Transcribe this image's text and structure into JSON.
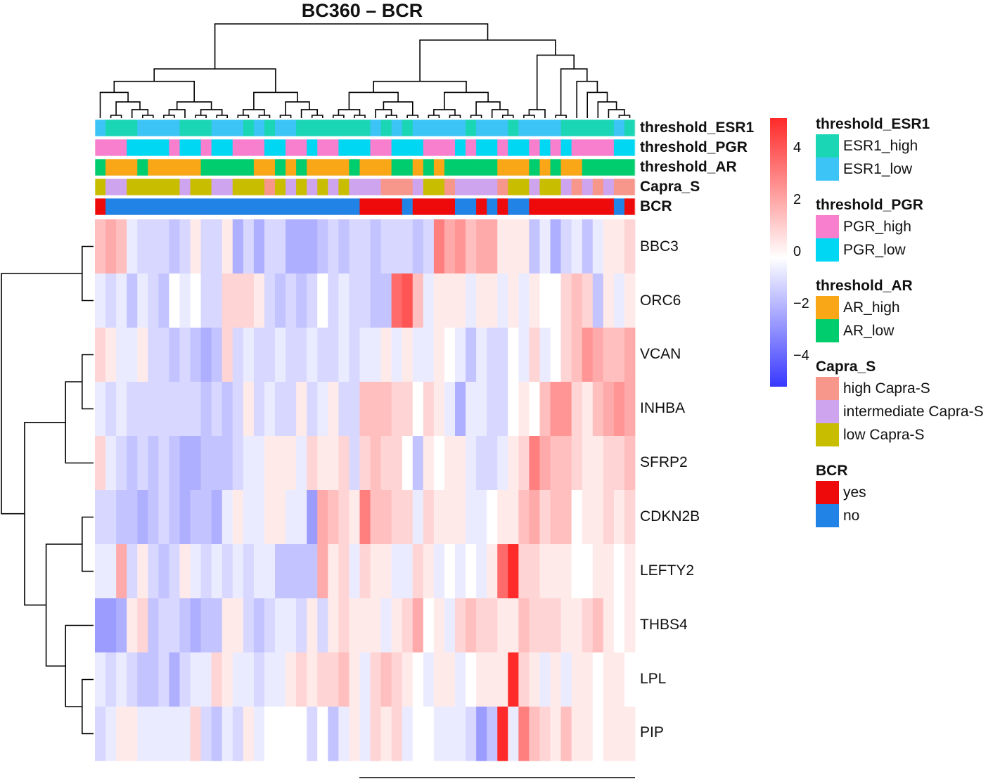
{
  "chart_data": {
    "type": "heatmap",
    "title": "BC360 – BCR",
    "genes": [
      "BBC3",
      "ORC6",
      "VCAN",
      "INHBA",
      "SFRP2",
      "CDKN2B",
      "LEFTY2",
      "THBS4",
      "LPL",
      "PIP"
    ],
    "n_samples": 51,
    "values": [
      [
        1.5,
        2.0,
        1.5,
        -0.5,
        -1,
        -1,
        -1,
        -1.5,
        -1,
        0.5,
        -1,
        -1,
        0.5,
        -2,
        -1,
        -2,
        -1,
        -1,
        -2,
        -2,
        -2,
        -1.5,
        -1,
        -1.5,
        -1,
        -1,
        -1.5,
        -1,
        -1,
        -1,
        -1.5,
        -1,
        3.0,
        2.0,
        2.5,
        1.5,
        2.0,
        2.0,
        0.5,
        0.5,
        0.5,
        -1.5,
        -0.5,
        -2,
        -1,
        -0.5,
        -1.5,
        -0.5,
        0.5,
        0.5,
        1.0
      ],
      [
        -0.5,
        -1,
        -0.5,
        -1.5,
        -0.5,
        -1,
        -1.5,
        0.0,
        -0.5,
        0.0,
        -1,
        -1,
        1.0,
        1.0,
        1.0,
        0.5,
        -1,
        -1.5,
        -1,
        -1.5,
        -1,
        0.0,
        -1,
        -0.5,
        -1,
        -1,
        -1.5,
        -1.5,
        3.5,
        4.0,
        1.5,
        -0.5,
        0.5,
        0.5,
        0.5,
        -0.5,
        0.5,
        0.5,
        -0.5,
        0.5,
        -0.5,
        0.5,
        0.0,
        0.0,
        1.0,
        1.5,
        1.0,
        -1.5,
        0.5,
        -0.5,
        0.5
      ],
      [
        1.0,
        0.5,
        -0.5,
        -0.5,
        0.5,
        -1,
        -1,
        -1.5,
        -1,
        -1.5,
        -2,
        -1.5,
        1.0,
        -1,
        -0.5,
        -1,
        -1,
        -0.5,
        -1,
        -1,
        -0.5,
        -1,
        -1,
        -0.5,
        -1,
        -0.5,
        -0.5,
        0.5,
        -0.5,
        0.5,
        -0.5,
        -0.5,
        0.5,
        0.0,
        -0.5,
        -1.5,
        -0.5,
        -1,
        -1,
        0.0,
        -0.5,
        1.0,
        -0.5,
        0.0,
        1.0,
        1.5,
        2.5,
        2.0,
        1.5,
        1.5,
        2.0
      ],
      [
        -0.5,
        -1,
        -0.5,
        -1,
        -1,
        -1,
        -1,
        -1,
        -1,
        -1,
        -1.5,
        -1,
        -1.5,
        -1,
        0.5,
        -1,
        -0.5,
        -1,
        -1,
        0.5,
        -1,
        -0.5,
        0.5,
        -1,
        -1,
        1.5,
        1.5,
        1.5,
        1.0,
        1.0,
        0.0,
        1.0,
        0.5,
        -0.5,
        -2,
        -0.5,
        -0.5,
        -1,
        -1,
        0.0,
        0.5,
        0.0,
        1.5,
        2.5,
        2.5,
        1.0,
        0.5,
        1.5,
        2.0,
        2.5,
        2.0
      ],
      [
        1.0,
        -0.5,
        -1,
        -1.5,
        -1,
        -1.5,
        -1,
        -1.5,
        -2,
        -2,
        -1.5,
        -1.5,
        -1.5,
        -1,
        -0.5,
        -0.5,
        0.5,
        0.5,
        0.5,
        -0.5,
        1.0,
        0.5,
        0.5,
        1.0,
        -1,
        1.0,
        1.5,
        1.0,
        1.0,
        0.0,
        -1.5,
        0.5,
        0.0,
        0.5,
        0.5,
        -0.5,
        -1,
        -1,
        -0.5,
        0.5,
        1.0,
        3.0,
        2.0,
        1.5,
        1.5,
        1.0,
        0.5,
        0.5,
        1.0,
        1.0,
        1.5
      ],
      [
        -1,
        -1,
        -1.5,
        -1.5,
        -2,
        -1.5,
        -1,
        -1.5,
        -2,
        -1.5,
        -1.5,
        -2,
        -0.5,
        0.5,
        -0.5,
        -0.5,
        0.5,
        0.5,
        -0.5,
        -0.5,
        -2.5,
        2.0,
        1.5,
        1.0,
        0.5,
        3.0,
        1.5,
        1.5,
        1.0,
        1.0,
        -0.5,
        1.0,
        0.5,
        0.5,
        0.5,
        -0.5,
        -0.5,
        0.0,
        0.5,
        0.5,
        1.5,
        2.0,
        1.0,
        1.5,
        1.5,
        0.0,
        0.5,
        0.5,
        1.0,
        0.5,
        1.0
      ],
      [
        -0.5,
        -0.5,
        2.0,
        -1,
        0.5,
        -1,
        -1.5,
        -1,
        0.5,
        -0.5,
        -1,
        -0.5,
        -1,
        -0.5,
        -1,
        -0.5,
        -0.5,
        -1.5,
        -1.5,
        -1.5,
        -1.5,
        2.0,
        0.5,
        1.0,
        -0.5,
        1.0,
        0.5,
        0.5,
        -0.5,
        -0.5,
        1.0,
        0.5,
        -0.5,
        0.0,
        -0.5,
        0.0,
        -0.5,
        0.5,
        3.5,
        5.0,
        1.0,
        1.0,
        0.5,
        0.5,
        0.5,
        0.0,
        0.0,
        0.5,
        0.5,
        0.0,
        0.5
      ],
      [
        -2.5,
        -2.5,
        -2,
        0.5,
        1.0,
        -1.5,
        -1,
        -1,
        -1.5,
        -2,
        -1.5,
        -1.5,
        0.5,
        0.5,
        -1,
        -1.5,
        -1,
        -0.5,
        -0.5,
        -1,
        0.5,
        -1,
        0.5,
        1.0,
        0.5,
        0.5,
        0.5,
        -0.5,
        0.5,
        1.0,
        2.0,
        0.0,
        0.5,
        -0.5,
        1.0,
        1.5,
        1.0,
        1.0,
        0.5,
        0.5,
        1.5,
        1.0,
        1.0,
        1.0,
        0.5,
        0.5,
        1.0,
        1.5,
        0.5,
        0.0,
        0.5
      ],
      [
        -0.5,
        -1,
        -0.5,
        -1,
        -1.5,
        -1.5,
        -1,
        -2,
        -1,
        -0.5,
        -0.5,
        1.0,
        0.5,
        -0.5,
        -0.5,
        -1,
        -0.5,
        -0.5,
        0.5,
        1.0,
        0.5,
        1.0,
        1.0,
        1.5,
        0.5,
        -0.5,
        1.0,
        1.5,
        1.0,
        0.5,
        0.0,
        -0.5,
        0.5,
        0.5,
        -0.5,
        0.0,
        0.5,
        0.5,
        0.5,
        5.0,
        1.0,
        0.5,
        -0.5,
        0.5,
        -0.5,
        0.5,
        0.5,
        0.0,
        0.5,
        0.5,
        0.0
      ],
      [
        -1,
        -0.5,
        0.5,
        0.5,
        -0.5,
        -0.5,
        -0.5,
        -0.5,
        -0.5,
        1.0,
        -1,
        -1.5,
        -0.5,
        -1,
        0.5,
        -0.5,
        0.0,
        0.0,
        0.0,
        0.0,
        -1,
        0.0,
        -1.5,
        -0.5,
        0.5,
        -0.5,
        1.0,
        0.5,
        1.0,
        -0.5,
        0.0,
        0.0,
        -0.5,
        -0.5,
        -0.5,
        -1,
        -2.5,
        -1.5,
        5.0,
        -0.5,
        3.0,
        1.5,
        1.0,
        0.5,
        1.5,
        0.5,
        0.5,
        0.0,
        0.5,
        0.5,
        0.5
      ]
    ],
    "annotations": [
      {
        "name": "threshold_ESR1",
        "values": [
          "ESR1_low",
          "ESR1_high",
          "ESR1_high",
          "ESR1_high",
          "ESR1_low",
          "ESR1_low",
          "ESR1_low",
          "ESR1_low",
          "ESR1_high",
          "ESR1_high",
          "ESR1_high",
          "ESR1_low",
          "ESR1_low",
          "ESR1_low",
          "ESR1_high",
          "ESR1_low",
          "ESR1_high",
          "ESR1_low",
          "ESR1_low",
          "ESR1_high",
          "ESR1_high",
          "ESR1_high",
          "ESR1_high",
          "ESR1_high",
          "ESR1_high",
          "ESR1_high",
          "ESR1_low",
          "ESR1_high",
          "ESR1_low",
          "ESR1_high",
          "ESR1_low",
          "ESR1_low",
          "ESR1_low",
          "ESR1_low",
          "ESR1_low",
          "ESR1_high",
          "ESR1_low",
          "ESR1_low",
          "ESR1_low",
          "ESR1_high",
          "ESR1_low",
          "ESR1_low",
          "ESR1_low",
          "ESR1_low",
          "ESR1_high",
          "ESR1_high",
          "ESR1_high",
          "ESR1_high",
          "ESR1_high",
          "ESR1_low",
          "ESR1_high"
        ]
      },
      {
        "name": "threshold_PGR",
        "values": [
          "PGR_high",
          "PGR_high",
          "PGR_high",
          "PGR_low",
          "PGR_low",
          "PGR_low",
          "PGR_low",
          "PGR_high",
          "PGR_low",
          "PGR_low",
          "PGR_high",
          "PGR_low",
          "PGR_low",
          "PGR_high",
          "PGR_high",
          "PGR_high",
          "PGR_low",
          "PGR_low",
          "PGR_high",
          "PGR_high",
          "PGR_low",
          "PGR_high",
          "PGR_high",
          "PGR_low",
          "PGR_low",
          "PGR_low",
          "PGR_high",
          "PGR_high",
          "PGR_low",
          "PGR_low",
          "PGR_low",
          "PGR_high",
          "PGR_high",
          "PGR_high",
          "PGR_low",
          "PGR_high",
          "PGR_low",
          "PGR_low",
          "PGR_high",
          "PGR_low",
          "PGR_low",
          "PGR_high",
          "PGR_low",
          "PGR_high",
          "PGR_low",
          "PGR_high",
          "PGR_high",
          "PGR_high",
          "PGR_high",
          "PGR_low",
          "PGR_low"
        ]
      },
      {
        "name": "threshold_AR",
        "values": [
          "AR_low",
          "AR_high",
          "AR_high",
          "AR_high",
          "AR_low",
          "AR_high",
          "AR_high",
          "AR_high",
          "AR_high",
          "AR_high",
          "AR_low",
          "AR_low",
          "AR_low",
          "AR_low",
          "AR_low",
          "AR_high",
          "AR_high",
          "AR_low",
          "AR_high",
          "AR_low",
          "AR_high",
          "AR_high",
          "AR_high",
          "AR_high",
          "AR_low",
          "AR_high",
          "AR_high",
          "AR_high",
          "AR_low",
          "AR_low",
          "AR_high",
          "AR_low",
          "AR_high",
          "AR_low",
          "AR_low",
          "AR_low",
          "AR_low",
          "AR_low",
          "AR_high",
          "AR_high",
          "AR_high",
          "AR_low",
          "AR_high",
          "AR_low",
          "AR_high",
          "AR_high",
          "AR_low",
          "AR_low",
          "AR_low",
          "AR_low",
          "AR_low"
        ]
      },
      {
        "name": "Capra_S",
        "values": [
          "low Capra-S",
          "intermediate Capra-S",
          "intermediate Capra-S",
          "low Capra-S",
          "low Capra-S",
          "low Capra-S",
          "low Capra-S",
          "low Capra-S",
          "intermediate Capra-S",
          "low Capra-S",
          "low Capra-S",
          "intermediate Capra-S",
          "intermediate Capra-S",
          "low Capra-S",
          "low Capra-S",
          "low Capra-S",
          "high Capra-S",
          "low Capra-S",
          "intermediate Capra-S",
          "low Capra-S",
          "intermediate Capra-S",
          "low Capra-S",
          "intermediate Capra-S",
          "low Capra-S",
          "intermediate Capra-S",
          "intermediate Capra-S",
          "intermediate Capra-S",
          "high Capra-S",
          "high Capra-S",
          "high Capra-S",
          "intermediate Capra-S",
          "low Capra-S",
          "low Capra-S",
          "high Capra-S",
          "intermediate Capra-S",
          "intermediate Capra-S",
          "intermediate Capra-S",
          "intermediate Capra-S",
          "high Capra-S",
          "low Capra-S",
          "low Capra-S",
          "intermediate Capra-S",
          "low Capra-S",
          "low Capra-S",
          "intermediate Capra-S",
          "high Capra-S",
          "intermediate Capra-S",
          "high Capra-S",
          "intermediate Capra-S",
          "high Capra-S",
          "high Capra-S"
        ]
      },
      {
        "name": "BCR",
        "values": [
          "yes",
          "no",
          "no",
          "no",
          "no",
          "no",
          "no",
          "no",
          "no",
          "no",
          "no",
          "no",
          "no",
          "no",
          "no",
          "no",
          "no",
          "no",
          "no",
          "no",
          "no",
          "no",
          "no",
          "no",
          "no",
          "yes",
          "yes",
          "yes",
          "yes",
          "no",
          "yes",
          "yes",
          "yes",
          "yes",
          "no",
          "no",
          "yes",
          "no",
          "yes",
          "no",
          "no",
          "yes",
          "yes",
          "yes",
          "yes",
          "yes",
          "yes",
          "yes",
          "yes",
          "no",
          "yes"
        ]
      }
    ],
    "colorbar": {
      "min": -5,
      "max": 5,
      "ticks": [
        "4",
        "2",
        "0",
        "−2",
        "−4"
      ],
      "colors": {
        "high": "#ff2a2a",
        "mid": "#ffffff",
        "low": "#3838ff"
      }
    },
    "legends": [
      {
        "title": "threshold_ESR1",
        "items": [
          {
            "label": "ESR1_high",
            "color": "#1ad6b5"
          },
          {
            "label": "ESR1_low",
            "color": "#3cc4f7"
          }
        ]
      },
      {
        "title": "threshold_PGR",
        "items": [
          {
            "label": "PGR_high",
            "color": "#f77fce"
          },
          {
            "label": "PGR_low",
            "color": "#00d7f2"
          }
        ]
      },
      {
        "title": "threshold_AR",
        "items": [
          {
            "label": "AR_high",
            "color": "#f9a617"
          },
          {
            "label": "AR_low",
            "color": "#00cd6e"
          }
        ]
      },
      {
        "title": "Capra_S",
        "items": [
          {
            "label": "high Capra-S",
            "color": "#f7968a"
          },
          {
            "label": "intermediate Capra-S",
            "color": "#cfa4ef"
          },
          {
            "label": "low Capra-S",
            "color": "#c9bd00"
          }
        ]
      },
      {
        "title": "BCR",
        "items": [
          {
            "label": "yes",
            "color": "#ee0a0a"
          },
          {
            "label": "no",
            "color": "#2283e6"
          }
        ]
      }
    ]
  }
}
